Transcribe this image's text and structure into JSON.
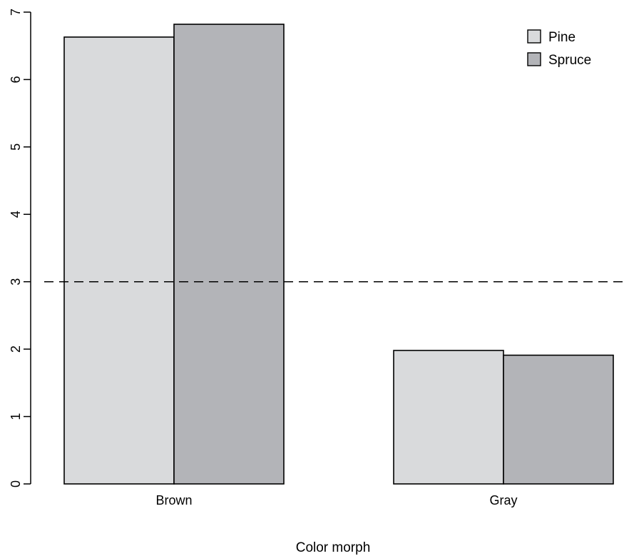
{
  "chart_data": {
    "type": "bar",
    "title": "",
    "xlabel": "Color morph",
    "ylabel": "",
    "ylim": [
      0,
      7
    ],
    "yticks": [
      0,
      1,
      2,
      3,
      4,
      5,
      6,
      7
    ],
    "categories": [
      "Brown",
      "Gray"
    ],
    "series": [
      {
        "name": "Pine",
        "values": [
          6.63,
          1.98
        ],
        "color": "#d9dadc"
      },
      {
        "name": "Spruce",
        "values": [
          6.82,
          1.91
        ],
        "color": "#b3b4b8"
      }
    ],
    "reference_line": {
      "y": 3,
      "style": "dashed"
    },
    "legend": {
      "position": "top-right"
    },
    "grid": false
  }
}
